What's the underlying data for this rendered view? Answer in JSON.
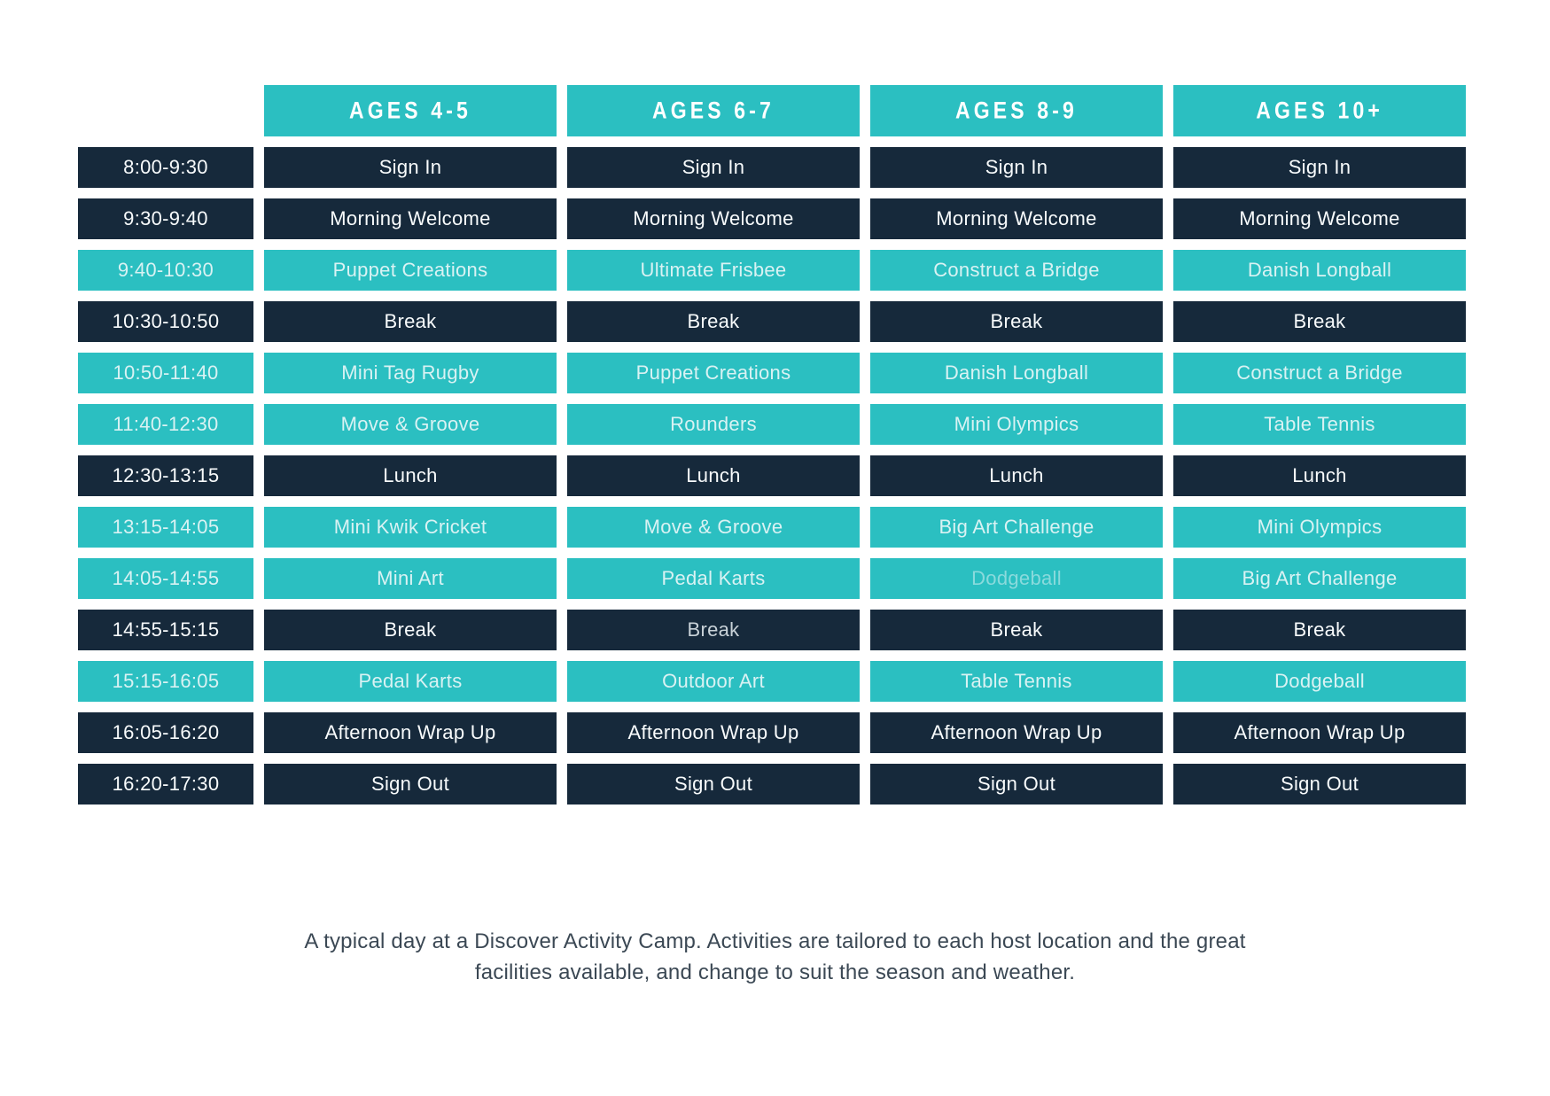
{
  "page": {
    "footer_line1": "A typical day at a Discover Activity Camp. Activities are tailored to each host location and the great",
    "footer_line2": "facilities available,  and change to suit the season and weather."
  },
  "colors": {
    "teal": "#2bbfc1",
    "navy": "#16293b",
    "teal_cell_text": "#d9f2f3",
    "navy_cell_text": "#f8fbfc",
    "muted_teal_text": "#8adadc",
    "dim_navy_text": "#c9d2d8",
    "footer_text": "#3b4854",
    "page_background": "#ffffff"
  },
  "schedule": {
    "column_headers": [
      "AGES 4-5",
      "AGES 6-7",
      "AGES 8-9",
      "AGES 10+"
    ],
    "rows": [
      {
        "time": "8:00-9:30",
        "theme": "navy",
        "activities": [
          "Sign In",
          "Sign In",
          "Sign In",
          "Sign In"
        ]
      },
      {
        "time": "9:30-9:40",
        "theme": "navy",
        "activities": [
          "Morning Welcome",
          "Morning Welcome",
          "Morning Welcome",
          "Morning Welcome"
        ]
      },
      {
        "time": "9:40-10:30",
        "theme": "teal",
        "activities": [
          "Puppet Creations",
          "Ultimate Frisbee",
          "Construct a Bridge",
          "Danish Longball"
        ]
      },
      {
        "time": "10:30-10:50",
        "theme": "navy",
        "activities": [
          "Break",
          "Break",
          "Break",
          "Break"
        ]
      },
      {
        "time": "10:50-11:40",
        "theme": "teal",
        "activities": [
          "Mini Tag Rugby",
          "Puppet Creations",
          "Danish Longball",
          "Construct a Bridge"
        ]
      },
      {
        "time": "11:40-12:30",
        "theme": "teal",
        "activities": [
          "Move & Groove",
          "Rounders",
          "Mini Olympics",
          "Table Tennis"
        ]
      },
      {
        "time": "12:30-13:15",
        "theme": "navy",
        "activities": [
          "Lunch",
          "Lunch",
          "Lunch",
          "Lunch"
        ]
      },
      {
        "time": "13:15-14:05",
        "theme": "teal",
        "activities": [
          "Mini Kwik Cricket",
          "Move & Groove",
          "Big Art Challenge",
          "Mini Olympics"
        ]
      },
      {
        "time": "14:05-14:55",
        "theme": "teal",
        "activities": [
          "Mini Art",
          "Pedal Karts",
          {
            "text": "Dodgeball",
            "muted": true
          },
          "Big Art Challenge"
        ]
      },
      {
        "time": "14:55-15:15",
        "theme": "navy",
        "activities": [
          "Break",
          {
            "text": "Break",
            "muted": true
          },
          "Break",
          "Break"
        ]
      },
      {
        "time": "15:15-16:05",
        "theme": "teal",
        "activities": [
          "Pedal Karts",
          "Outdoor Art",
          "Table Tennis",
          "Dodgeball"
        ]
      },
      {
        "time": "16:05-16:20",
        "theme": "navy",
        "activities": [
          "Afternoon Wrap Up",
          "Afternoon Wrap Up",
          "Afternoon Wrap Up",
          "Afternoon Wrap Up"
        ]
      },
      {
        "time": "16:20-17:30",
        "theme": "navy",
        "activities": [
          "Sign Out",
          "Sign Out",
          "Sign Out",
          "Sign Out"
        ]
      }
    ]
  }
}
